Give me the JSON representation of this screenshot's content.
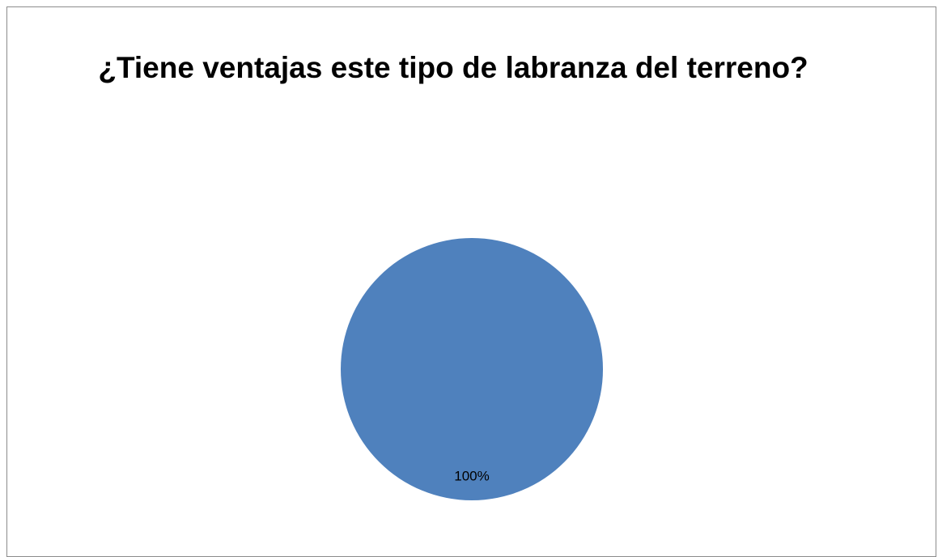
{
  "chart_data": {
    "type": "pie",
    "title": "¿Tiene ventajas este tipo de labranza del terreno?",
    "values": [
      100
    ],
    "value_labels": [
      "100%"
    ],
    "colors": [
      "#4f81bd"
    ]
  }
}
